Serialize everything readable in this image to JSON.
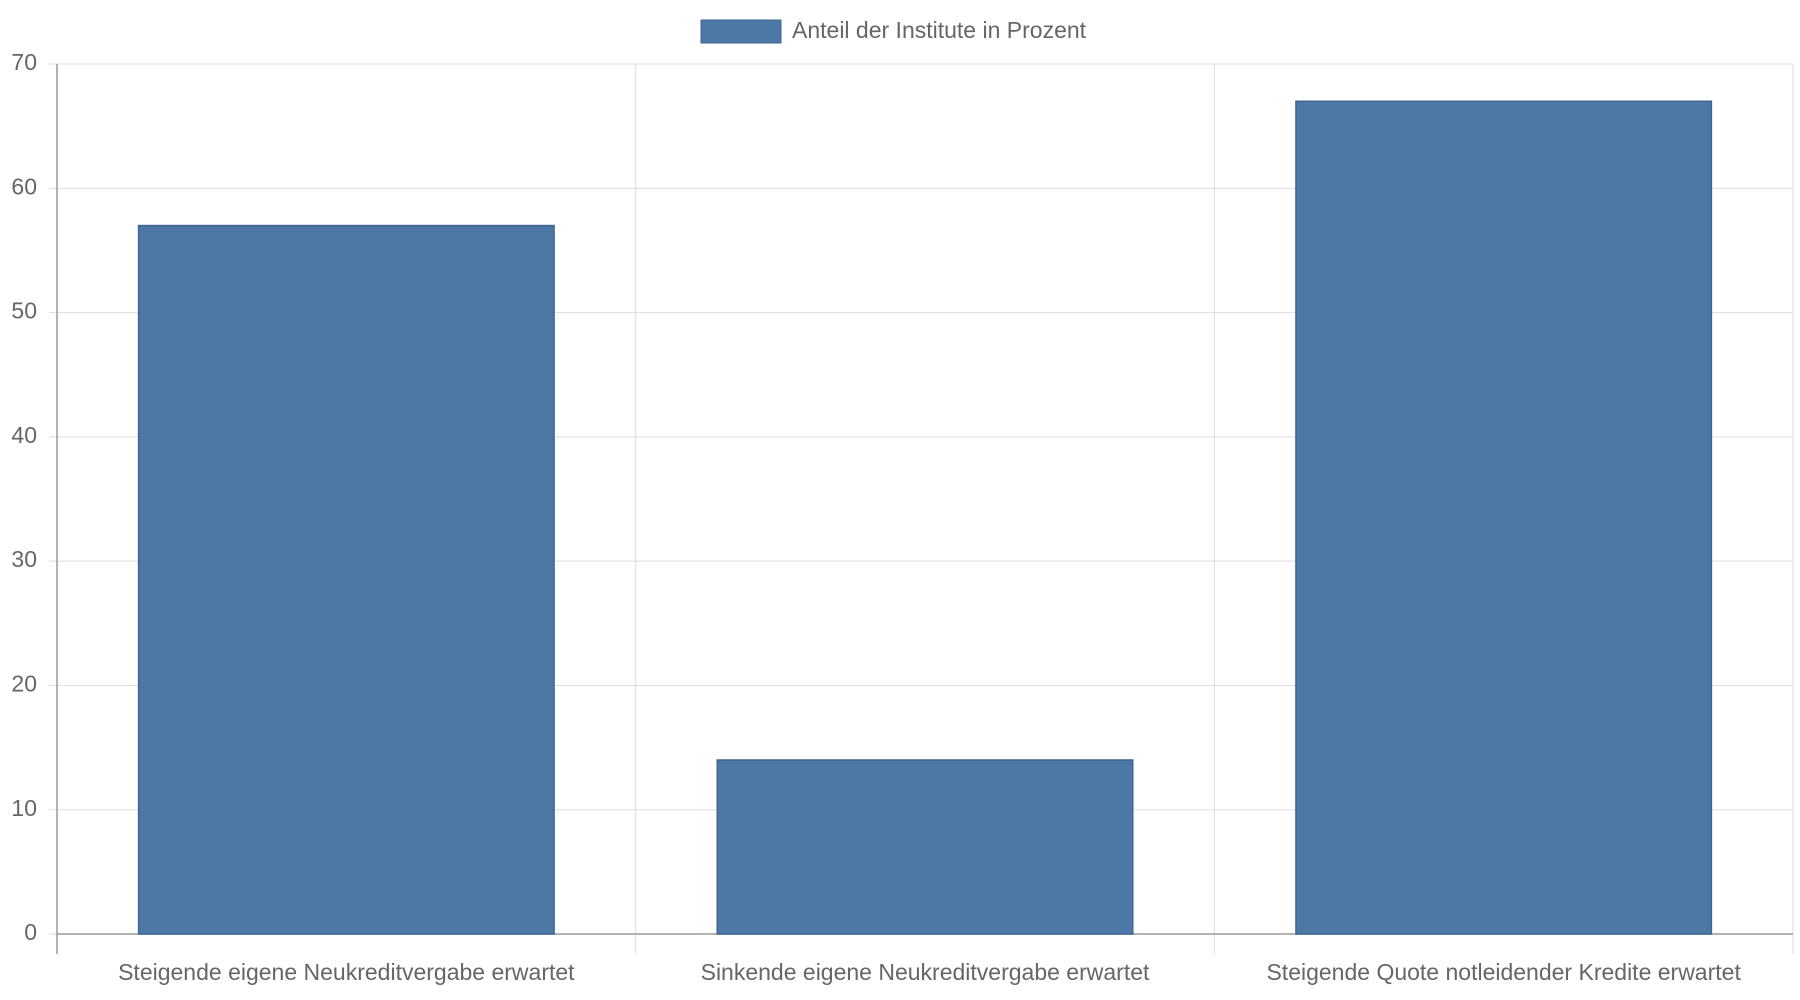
{
  "chart_data": {
    "type": "bar",
    "categories": [
      "Steigende eigene Neukreditvergabe erwartet",
      "Sinkende eigene Neukreditvergabe erwartet",
      "Steigende Quote notleidender Kredite erwartet"
    ],
    "series": [
      {
        "name": "Anteil der Institute in Prozent",
        "color": "#4d78a6",
        "values": [
          57,
          14,
          67
        ]
      }
    ],
    "ylim": [
      0,
      70
    ],
    "yticks": [
      0,
      10,
      20,
      30,
      40,
      50,
      60,
      70
    ],
    "grid": true,
    "legend": "top"
  }
}
